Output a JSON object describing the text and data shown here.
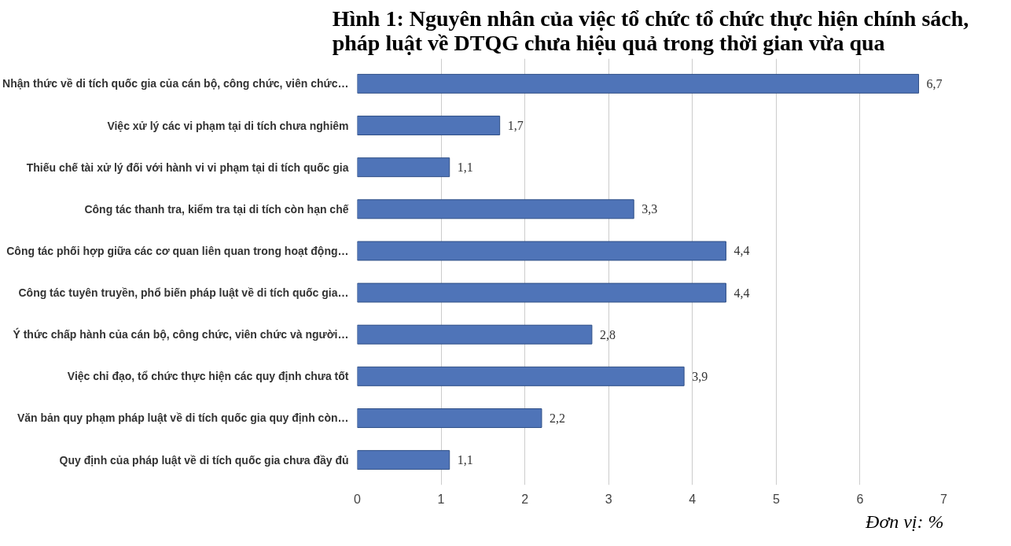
{
  "chart_data": {
    "type": "bar",
    "orientation": "horizontal",
    "title": "Hình 1: Nguyên nhân của việc tổ chức tổ chức thực hiện chính sách,\npháp luật về DTQG chưa hiệu quả trong thời gian vừa qua",
    "categories": [
      "Nhận thức về di tích quốc gia của cán bộ, công chức, viên chức…",
      "Việc xử lý các vi phạm tại di tích chưa nghiêm",
      "Thiếu chế tài xử lý đối với hành vi vi phạm tại di tích quốc gia",
      "Công tác thanh tra, kiểm tra tại di tích còn hạn chế",
      "Công tác phối hợp giữa các cơ quan liên quan trong hoạt động…",
      "Công tác tuyên truyền, phổ biến pháp luật về di tích quốc gia…",
      "Ý thức chấp hành của cán bộ, công chức, viên chức và người…",
      "Việc chỉ đạo, tổ chức thực hiện các quy định chưa tốt",
      "Văn bản quy phạm pháp luật về di tích quốc gia quy định còn…",
      "Quy định của pháp luật về di tích quốc gia chưa đầy đủ"
    ],
    "values": [
      6.7,
      1.7,
      1.1,
      3.3,
      4.4,
      4.4,
      2.8,
      3.9,
      2.2,
      1.1
    ],
    "value_labels": [
      "6,7",
      "1,7",
      "1,1",
      "3,3",
      "4,4",
      "4,4",
      "2,8",
      "3,9",
      "2,2",
      "1,1"
    ],
    "color": "#4f74b8",
    "xlim": [
      0,
      7
    ],
    "xticks": [
      0,
      1,
      2,
      3,
      4,
      5,
      6,
      7
    ],
    "grid": "x",
    "annotations": [
      "Đơn vị: %"
    ]
  }
}
